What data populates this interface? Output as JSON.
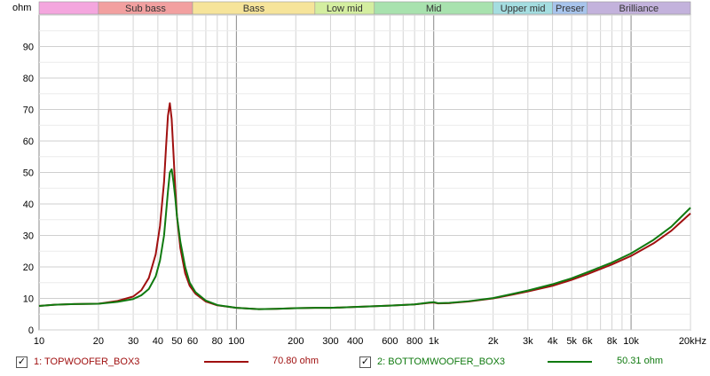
{
  "chart_data": {
    "type": "line",
    "ylabel": "ohm",
    "xscale": "log",
    "xlim": [
      10,
      20000
    ],
    "ylim": [
      0,
      100
    ],
    "grid": true,
    "y_ticks": [
      0,
      10,
      20,
      30,
      40,
      50,
      60,
      70,
      80,
      90
    ],
    "x_tick_values": [
      10,
      20,
      30,
      40,
      50,
      60,
      80,
      100,
      200,
      300,
      400,
      600,
      800,
      1000,
      2000,
      3000,
      4000,
      5000,
      6000,
      8000,
      10000,
      20000
    ],
    "x_tick_labels": [
      "10",
      "20",
      "30",
      "40",
      "50",
      "60",
      "80",
      "100",
      "200",
      "300",
      "400",
      "600",
      "800",
      "1k",
      "2k",
      "3k",
      "4k",
      "5k",
      "6k",
      "8k",
      "10k",
      "20kHz"
    ],
    "bands": [
      {
        "label": "",
        "from": 10,
        "to": 20,
        "color": "#f4a6de"
      },
      {
        "label": "Sub bass",
        "from": 20,
        "to": 60,
        "color": "#f2a0a0"
      },
      {
        "label": "Bass",
        "from": 60,
        "to": 250,
        "color": "#f6e49a"
      },
      {
        "label": "Low mid",
        "from": 250,
        "to": 500,
        "color": "#d4eea0"
      },
      {
        "label": "Mid",
        "from": 500,
        "to": 2000,
        "color": "#a8e2ae"
      },
      {
        "label": "Upper mid",
        "from": 2000,
        "to": 4000,
        "color": "#a4dde0"
      },
      {
        "label": "Preser",
        "from": 4000,
        "to": 6000,
        "color": "#a8c4ec"
      },
      {
        "label": "Brilliance",
        "from": 6000,
        "to": 20000,
        "color": "#c3b2dc"
      }
    ],
    "series": [
      {
        "name": "1: TOPWOOFER_BOX3",
        "color": "#a01010",
        "value_label": "70.80 ohm",
        "x": [
          10,
          12,
          15,
          20,
          25,
          30,
          33,
          36,
          39,
          41,
          43,
          44,
          45,
          46,
          47,
          48,
          49,
          50,
          52,
          55,
          58,
          62,
          70,
          80,
          100,
          130,
          160,
          200,
          250,
          300,
          400,
          600,
          800,
          950,
          1000,
          1050,
          1200,
          1500,
          2000,
          2500,
          3000,
          4000,
          5000,
          6000,
          8000,
          10000,
          13000,
          16000,
          20000
        ],
        "y": [
          7.6,
          8.0,
          8.2,
          8.3,
          9.2,
          10.6,
          12.6,
          16.5,
          24.0,
          33.0,
          47.0,
          58.0,
          68.0,
          72.0,
          67.0,
          56.0,
          45.0,
          36.0,
          26.0,
          18.0,
          14.0,
          11.5,
          9.0,
          7.8,
          7.0,
          6.6,
          6.7,
          6.9,
          7.0,
          7.0,
          7.3,
          7.7,
          8.1,
          8.6,
          8.7,
          8.4,
          8.5,
          9.0,
          10.0,
          11.2,
          12.2,
          14.0,
          15.9,
          17.7,
          20.8,
          23.5,
          27.5,
          31.5,
          37.0
        ]
      },
      {
        "name": "2: BOTTOMWOOFER_BOX3",
        "color": "#107a10",
        "value_label": "50.31 ohm",
        "x": [
          10,
          12,
          15,
          20,
          25,
          30,
          33,
          36,
          39,
          41,
          43,
          44,
          45,
          46,
          47,
          48,
          49,
          50,
          52,
          55,
          58,
          62,
          70,
          80,
          100,
          130,
          160,
          200,
          250,
          300,
          400,
          600,
          800,
          950,
          1000,
          1050,
          1200,
          1500,
          2000,
          2500,
          3000,
          4000,
          5000,
          6000,
          8000,
          10000,
          13000,
          16000,
          20000
        ],
        "y": [
          7.6,
          8.0,
          8.2,
          8.3,
          8.9,
          9.8,
          11.0,
          13.0,
          17.0,
          22.0,
          30.0,
          37.0,
          44.0,
          50.0,
          51.0,
          47.0,
          42.0,
          36.0,
          28.0,
          20.0,
          15.0,
          12.0,
          9.3,
          7.9,
          7.0,
          6.6,
          6.7,
          6.9,
          7.0,
          7.0,
          7.3,
          7.7,
          8.1,
          8.7,
          8.8,
          8.5,
          8.6,
          9.1,
          10.1,
          11.4,
          12.5,
          14.5,
          16.4,
          18.3,
          21.4,
          24.3,
          28.6,
          32.8,
          38.8
        ]
      }
    ]
  }
}
